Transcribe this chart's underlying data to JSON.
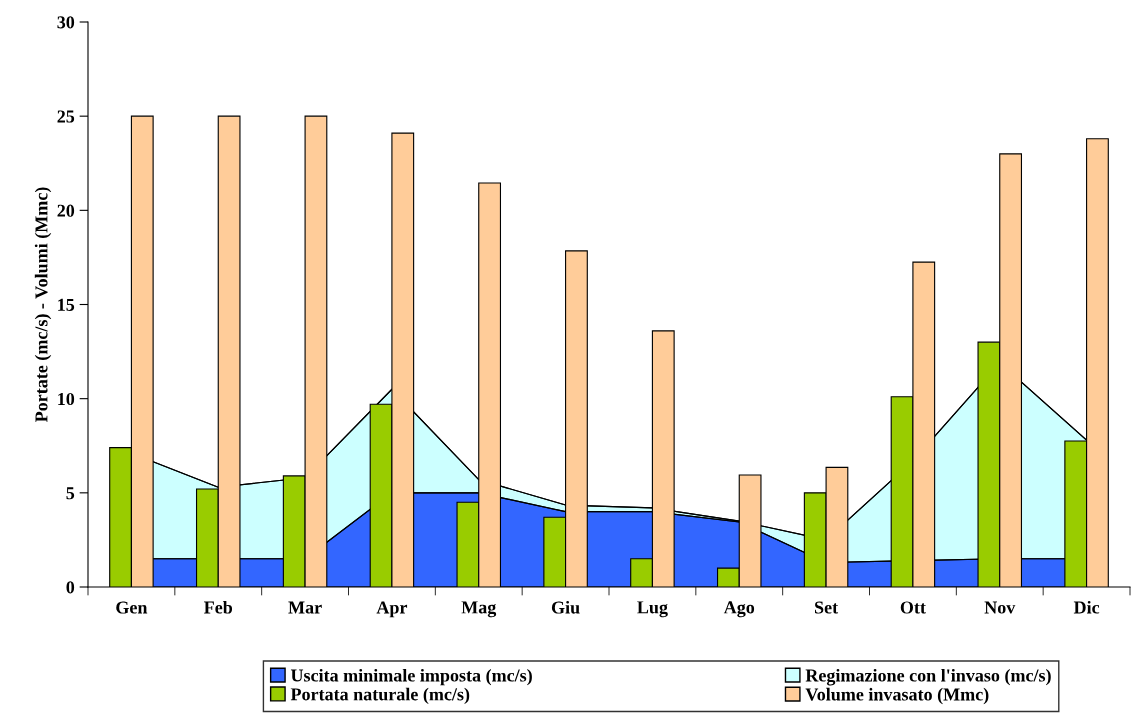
{
  "chart_data": {
    "type": "bar",
    "ylabel": "Portate (mc/s) - Volumi (Mmc)",
    "categories": [
      "Gen",
      "Feb",
      "Mar",
      "Apr",
      "Mag",
      "Giu",
      "Lug",
      "Ago",
      "Set",
      "Ott",
      "Nov",
      "Dic"
    ],
    "series": [
      {
        "name": "Regimazione con l'invaso (mc/s)",
        "type": "area",
        "color": "#ccffff",
        "values": [
          7.1,
          5.3,
          5.8,
          10.5,
          5.7,
          4.35,
          4.2,
          3.5,
          2.5,
          6.7,
          11.9,
          7.8
        ]
      },
      {
        "name": "Uscita minimale imposta (mc/s)",
        "type": "area",
        "color": "#3366ff",
        "values": [
          1.5,
          1.5,
          1.5,
          5.0,
          5.0,
          4.0,
          4.0,
          3.45,
          1.3,
          1.4,
          1.5,
          1.5
        ]
      },
      {
        "name": "Portata naturale (mc/s)",
        "color": "#99cc00",
        "values": [
          7.4,
          5.2,
          5.9,
          9.7,
          4.5,
          3.7,
          1.5,
          1.0,
          5.0,
          10.1,
          13.0,
          7.75
        ]
      },
      {
        "name": "Volume invasato (Mmc)",
        "color": "#ffcc99",
        "values": [
          25.0,
          25.0,
          25.0,
          24.1,
          21.45,
          17.85,
          13.6,
          5.95,
          6.35,
          17.25,
          23.0,
          23.8
        ]
      }
    ],
    "ylim": [
      0,
      30
    ],
    "yticks": [
      0,
      5,
      10,
      15,
      20,
      25,
      30
    ],
    "grid": false,
    "legend": "bottom"
  }
}
